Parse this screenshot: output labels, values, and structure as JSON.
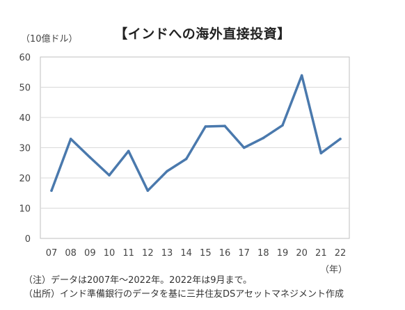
{
  "chart_data": {
    "type": "line",
    "title": "【インドへの海外直接投資】",
    "unit_label": "（10億ドル）",
    "xlabel": "（年）",
    "ylabel": "",
    "categories": [
      "07",
      "08",
      "09",
      "10",
      "11",
      "12",
      "13",
      "14",
      "15",
      "16",
      "17",
      "18",
      "19",
      "20",
      "21",
      "22"
    ],
    "series": [
      {
        "values": [
          15.8,
          32.9,
          26.8,
          20.9,
          28.9,
          15.8,
          22.2,
          26.3,
          37.0,
          37.2,
          30.0,
          33.2,
          37.4,
          53.9,
          28.2,
          32.9
        ]
      }
    ],
    "ylim": [
      0,
      60
    ],
    "yticks": [
      0,
      10,
      20,
      30,
      40,
      50,
      60
    ],
    "grid": true,
    "legend": "none",
    "line_color": "#4a79ad"
  },
  "notes": {
    "line1": "（注）データは2007年～2022年。2022年は9月まで。",
    "line2": "（出所）インド準備銀行のデータを基に三井住友DSアセットマネジメント作成"
  }
}
